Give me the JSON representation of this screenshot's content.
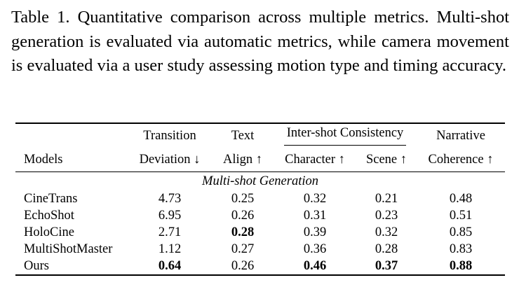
{
  "caption": "Table 1. Quantitative comparison across multiple metrics. Multi-shot generation is evaluated via automatic metrics, while camera movement is evaluated via a user study assessing motion type and timing accuracy.",
  "header": {
    "row1": {
      "transition": "Transition",
      "text": "Text",
      "group": "Inter-shot Consistency",
      "narrative": "Narrative"
    },
    "row2": {
      "models": "Models",
      "deviation": "Deviation ↓",
      "align": "Align ↑",
      "character": "Character ↑",
      "scene": "Scene ↑",
      "coherence": "Coherence ↑"
    }
  },
  "section_title": "Multi-shot Generation",
  "rows": [
    {
      "model": "CineTrans",
      "cells": [
        "4.73",
        "0.25",
        "0.32",
        "0.21",
        "0.48"
      ],
      "bold": [
        false,
        false,
        false,
        false,
        false
      ]
    },
    {
      "model": "EchoShot",
      "cells": [
        "6.95",
        "0.26",
        "0.31",
        "0.23",
        "0.51"
      ],
      "bold": [
        false,
        false,
        false,
        false,
        false
      ]
    },
    {
      "model": "HoloCine",
      "cells": [
        "2.71",
        "0.28",
        "0.39",
        "0.32",
        "0.85"
      ],
      "bold": [
        false,
        true,
        false,
        false,
        false
      ]
    },
    {
      "model": "MultiShotMaster",
      "cells": [
        "1.12",
        "0.27",
        "0.36",
        "0.28",
        "0.83"
      ],
      "bold": [
        false,
        false,
        false,
        false,
        false
      ]
    },
    {
      "model": "Ours",
      "cells": [
        "0.64",
        "0.26",
        "0.46",
        "0.37",
        "0.88"
      ],
      "bold": [
        true,
        false,
        true,
        true,
        true
      ]
    }
  ]
}
